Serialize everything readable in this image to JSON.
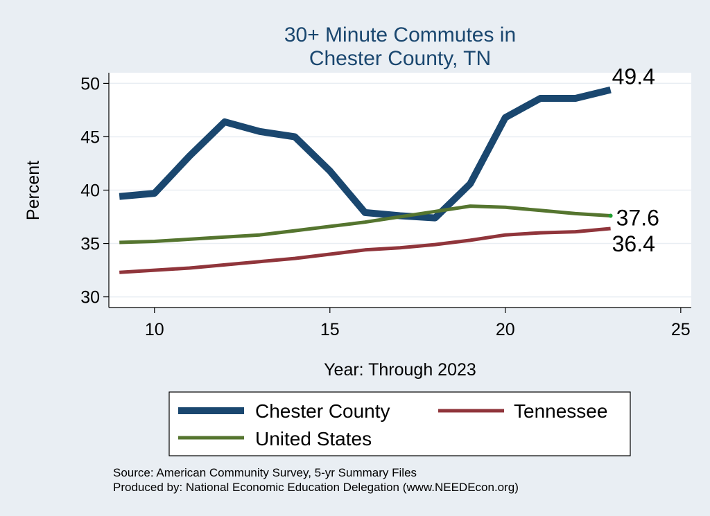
{
  "chart_data": {
    "type": "line",
    "title": [
      "30+ Minute Commutes in",
      "Chester County, TN"
    ],
    "xlabel": "Year: Through 2023",
    "ylabel": "Percent",
    "xlim": [
      8.7,
      25.3
    ],
    "ylim": [
      29.0,
      51.0
    ],
    "xticks": [
      10,
      15,
      20,
      25
    ],
    "yticks": [
      30,
      35,
      40,
      45,
      50
    ],
    "grid": true,
    "x": [
      9,
      10,
      11,
      12,
      13,
      14,
      15,
      16,
      17,
      18,
      19,
      20,
      21,
      22,
      23
    ],
    "series": [
      {
        "name": "Chester County",
        "color": "#1a476f",
        "values": [
          39.4,
          39.7,
          43.2,
          46.4,
          45.5,
          45.0,
          41.8,
          37.9,
          37.6,
          37.4,
          40.6,
          46.8,
          48.6,
          48.6,
          49.4
        ],
        "end_label": "49.4"
      },
      {
        "name": "Tennessee",
        "color": "#90353b",
        "values": [
          32.3,
          32.5,
          32.7,
          33.0,
          33.3,
          33.6,
          34.0,
          34.4,
          34.6,
          34.9,
          35.3,
          35.8,
          36.0,
          36.1,
          36.4
        ],
        "end_label": "36.4"
      },
      {
        "name": "United States",
        "color": "#55752f",
        "values": [
          35.1,
          35.2,
          35.4,
          35.6,
          35.8,
          36.2,
          36.6,
          37.0,
          37.5,
          38.0,
          38.5,
          38.4,
          38.1,
          37.8,
          37.6
        ],
        "end_label": "37.6"
      }
    ],
    "legend": {
      "position": "bottom",
      "entries": [
        "Chester County",
        "Tennessee",
        "United States"
      ]
    },
    "notes": [
      "Source: American Community Survey, 5-yr Summary Files",
      "Produced by: National Economic Education Delegation (www.NEEDEcon.org)"
    ]
  },
  "colors": {
    "background": "#e9eef3",
    "plot_area": "#ffffff",
    "title": "#1a476f",
    "grid": "#e9eef3"
  }
}
